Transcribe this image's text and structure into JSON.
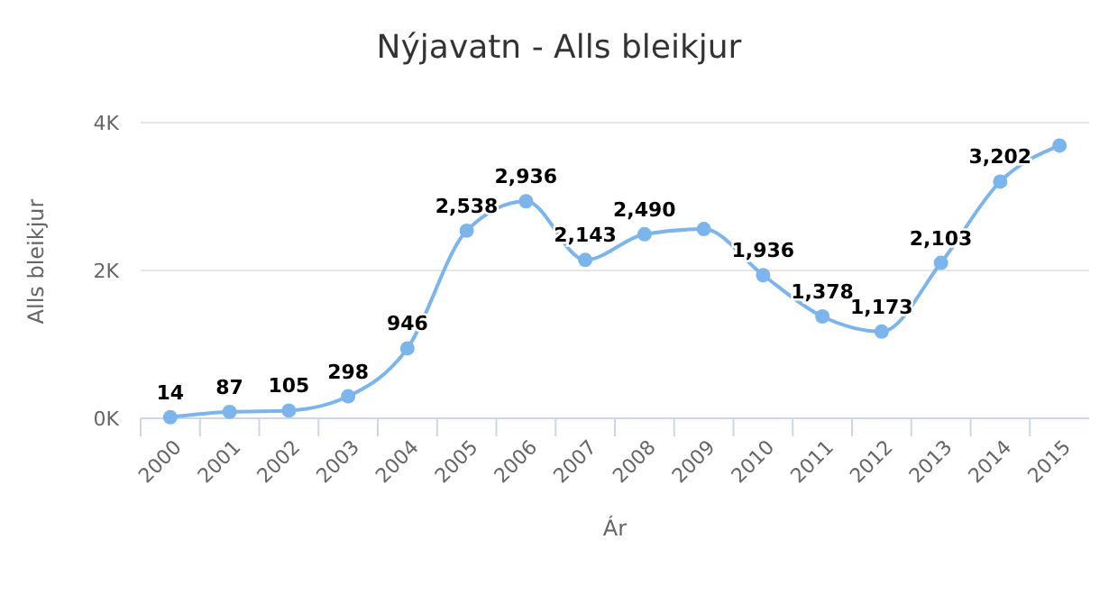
{
  "chart_data": {
    "type": "line",
    "title": "Nýjavatn - Alls bleikjur",
    "xlabel": "Ár",
    "ylabel": "Alls bleikjur",
    "categories": [
      "2000",
      "2001",
      "2002",
      "2003",
      "2004",
      "2005",
      "2006",
      "2007",
      "2008",
      "2009",
      "2010",
      "2011",
      "2012",
      "2013",
      "2014",
      "2015"
    ],
    "series": [
      {
        "color": "#7cb5ec",
        "values": [
          14,
          87,
          105,
          298,
          946,
          2538,
          2936,
          2143,
          2490,
          2560,
          1936,
          1378,
          1173,
          2103,
          3202,
          3690
        ],
        "value_labels": [
          "14",
          "87",
          "105",
          "298",
          "946",
          "2,538",
          "2,936",
          "2,143",
          "2,490",
          null,
          "1,936",
          "1,378",
          "1,173",
          "2,103",
          "3,202",
          null
        ]
      }
    ],
    "ylim": [
      0,
      4000
    ],
    "yticks": [
      {
        "value": 0,
        "label": "0K"
      },
      {
        "value": 2000,
        "label": "2K"
      },
      {
        "value": 4000,
        "label": "4K"
      }
    ],
    "grid": "y",
    "marker": "circle",
    "line_style": "solid"
  }
}
